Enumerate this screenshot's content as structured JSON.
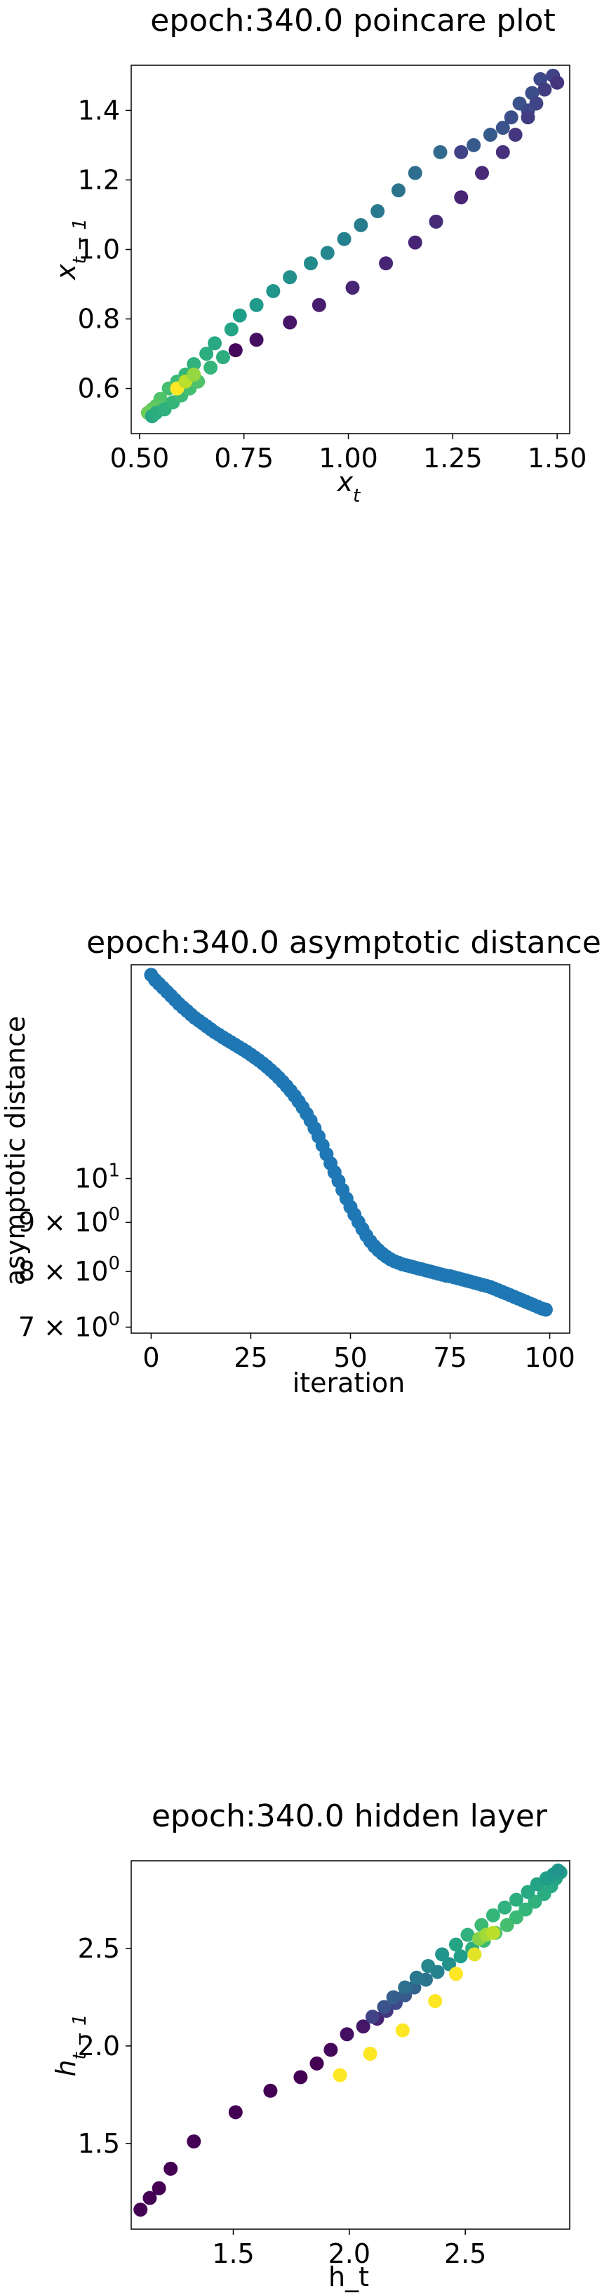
{
  "chart_data": [
    {
      "type": "scatter",
      "title": "epoch:340.0 poincare plot",
      "xlabel": "x_t",
      "ylabel": "x_{t-1}",
      "xlim": [
        0.48,
        1.53
      ],
      "ylim": [
        0.47,
        1.53
      ],
      "xticks": [
        0.5,
        0.75,
        1.0,
        1.25,
        1.5
      ],
      "xtick_labels": [
        "0.50",
        "0.75",
        "1.00",
        "1.25",
        "1.50"
      ],
      "yticks": [
        0.6,
        0.8,
        1.0,
        1.2,
        1.4
      ],
      "ytick_labels": [
        "0.6",
        "0.8",
        "1.0",
        "1.2",
        "1.4"
      ],
      "colormap": "viridis",
      "grid": false,
      "points": [
        {
          "x": 1.49,
          "y": 1.5,
          "c": 0.2
        },
        {
          "x": 1.5,
          "y": 1.48,
          "c": 0.15
        },
        {
          "x": 1.46,
          "y": 1.49,
          "c": 0.22
        },
        {
          "x": 1.47,
          "y": 1.46,
          "c": 0.18
        },
        {
          "x": 1.44,
          "y": 1.45,
          "c": 0.24
        },
        {
          "x": 1.45,
          "y": 1.42,
          "c": 0.2
        },
        {
          "x": 1.41,
          "y": 1.42,
          "c": 0.26
        },
        {
          "x": 1.43,
          "y": 1.4,
          "c": 0.22
        },
        {
          "x": 1.39,
          "y": 1.38,
          "c": 0.24
        },
        {
          "x": 1.37,
          "y": 1.35,
          "c": 0.26
        },
        {
          "x": 1.34,
          "y": 1.33,
          "c": 0.28
        },
        {
          "x": 1.3,
          "y": 1.3,
          "c": 0.28
        },
        {
          "x": 1.27,
          "y": 1.28,
          "c": 0.2
        },
        {
          "x": 1.22,
          "y": 1.28,
          "c": 0.34
        },
        {
          "x": 1.16,
          "y": 1.22,
          "c": 0.36
        },
        {
          "x": 1.12,
          "y": 1.17,
          "c": 0.38
        },
        {
          "x": 1.07,
          "y": 1.11,
          "c": 0.4
        },
        {
          "x": 1.03,
          "y": 1.07,
          "c": 0.42
        },
        {
          "x": 0.99,
          "y": 1.03,
          "c": 0.44
        },
        {
          "x": 0.95,
          "y": 0.99,
          "c": 0.46
        },
        {
          "x": 0.91,
          "y": 0.96,
          "c": 0.48
        },
        {
          "x": 0.86,
          "y": 0.92,
          "c": 0.5
        },
        {
          "x": 0.82,
          "y": 0.88,
          "c": 0.52
        },
        {
          "x": 0.78,
          "y": 0.84,
          "c": 0.54
        },
        {
          "x": 0.74,
          "y": 0.81,
          "c": 0.56
        },
        {
          "x": 0.72,
          "y": 0.77,
          "c": 0.58
        },
        {
          "x": 0.68,
          "y": 0.73,
          "c": 0.6
        },
        {
          "x": 0.66,
          "y": 0.7,
          "c": 0.62
        },
        {
          "x": 0.63,
          "y": 0.67,
          "c": 0.64
        },
        {
          "x": 0.61,
          "y": 0.64,
          "c": 0.66
        },
        {
          "x": 0.59,
          "y": 0.62,
          "c": 0.68
        },
        {
          "x": 0.57,
          "y": 0.6,
          "c": 0.7
        },
        {
          "x": 0.55,
          "y": 0.57,
          "c": 0.72
        },
        {
          "x": 0.54,
          "y": 0.55,
          "c": 0.74
        },
        {
          "x": 0.53,
          "y": 0.54,
          "c": 0.76
        },
        {
          "x": 0.52,
          "y": 0.53,
          "c": 0.78
        },
        {
          "x": 0.53,
          "y": 0.52,
          "c": 0.6
        },
        {
          "x": 0.54,
          "y": 0.53,
          "c": 0.62
        },
        {
          "x": 0.56,
          "y": 0.54,
          "c": 0.64
        },
        {
          "x": 0.58,
          "y": 0.56,
          "c": 0.66
        },
        {
          "x": 0.6,
          "y": 0.58,
          "c": 0.68
        },
        {
          "x": 0.62,
          "y": 0.6,
          "c": 0.7
        },
        {
          "x": 0.64,
          "y": 0.62,
          "c": 0.72
        },
        {
          "x": 0.59,
          "y": 0.6,
          "c": 1.0
        },
        {
          "x": 0.61,
          "y": 0.62,
          "c": 0.9
        },
        {
          "x": 0.63,
          "y": 0.64,
          "c": 0.84
        },
        {
          "x": 0.67,
          "y": 0.66,
          "c": 0.66
        },
        {
          "x": 0.7,
          "y": 0.69,
          "c": 0.62
        },
        {
          "x": 0.73,
          "y": 0.71,
          "c": 0.02
        },
        {
          "x": 0.78,
          "y": 0.74,
          "c": 0.04
        },
        {
          "x": 0.86,
          "y": 0.79,
          "c": 0.06
        },
        {
          "x": 0.93,
          "y": 0.84,
          "c": 0.08
        },
        {
          "x": 1.01,
          "y": 0.89,
          "c": 0.1
        },
        {
          "x": 1.09,
          "y": 0.96,
          "c": 0.1
        },
        {
          "x": 1.16,
          "y": 1.02,
          "c": 0.1
        },
        {
          "x": 1.21,
          "y": 1.08,
          "c": 0.12
        },
        {
          "x": 1.27,
          "y": 1.15,
          "c": 0.1
        },
        {
          "x": 1.32,
          "y": 1.22,
          "c": 0.12
        },
        {
          "x": 1.37,
          "y": 1.28,
          "c": 0.14
        },
        {
          "x": 1.4,
          "y": 1.33,
          "c": 0.16
        },
        {
          "x": 1.43,
          "y": 1.38,
          "c": 0.18
        }
      ]
    },
    {
      "type": "scatter",
      "title": "epoch:340.0 asymptotic distance",
      "xlabel": "iteration",
      "ylabel": "asymptotic distance",
      "xlim": [
        -5,
        105
      ],
      "ylim": [
        6.9,
        16.7
      ],
      "yscale": "log",
      "xticks": [
        0,
        25,
        50,
        75,
        100
      ],
      "xtick_labels": [
        "0",
        "25",
        "50",
        "75",
        "100"
      ],
      "yticks": [
        7,
        8,
        9,
        10
      ],
      "ytick_labels": [
        {
          "base": "7 × 10",
          "exp": "0"
        },
        {
          "base": "8 × 10",
          "exp": "0"
        },
        {
          "base": "9 × 10",
          "exp": "0"
        },
        {
          "base": "10",
          "exp": "1"
        }
      ],
      "color": "#1f77b4",
      "grid": false,
      "x": [
        0,
        1,
        2,
        3,
        4,
        5,
        6,
        7,
        8,
        9,
        10,
        11,
        12,
        13,
        14,
        15,
        16,
        17,
        18,
        19,
        20,
        21,
        22,
        23,
        24,
        25,
        26,
        27,
        28,
        29,
        30,
        31,
        32,
        33,
        34,
        35,
        36,
        37,
        38,
        39,
        40,
        41,
        42,
        43,
        44,
        45,
        46,
        47,
        48,
        49,
        50,
        51,
        52,
        53,
        54,
        55,
        56,
        57,
        58,
        59,
        60,
        61,
        62,
        63,
        64,
        65,
        66,
        67,
        68,
        69,
        70,
        71,
        72,
        73,
        74,
        75,
        76,
        77,
        78,
        79,
        80,
        81,
        82,
        83,
        84,
        85,
        86,
        87,
        88,
        89,
        90,
        91,
        92,
        93,
        94,
        95,
        96,
        97,
        98,
        99
      ],
      "y": [
        16.3,
        16.1,
        15.95,
        15.8,
        15.65,
        15.5,
        15.35,
        15.2,
        15.07,
        14.95,
        14.82,
        14.7,
        14.6,
        14.5,
        14.4,
        14.3,
        14.2,
        14.12,
        14.03,
        13.95,
        13.87,
        13.79,
        13.71,
        13.63,
        13.55,
        13.46,
        13.37,
        13.28,
        13.18,
        13.08,
        12.97,
        12.86,
        12.74,
        12.61,
        12.48,
        12.34,
        12.19,
        12.03,
        11.86,
        11.68,
        11.49,
        11.28,
        11.06,
        10.83,
        10.6,
        10.37,
        10.15,
        9.94,
        9.73,
        9.53,
        9.34,
        9.17,
        9.01,
        8.86,
        8.72,
        8.6,
        8.5,
        8.42,
        8.35,
        8.29,
        8.24,
        8.2,
        8.17,
        8.14,
        8.12,
        8.1,
        8.08,
        8.06,
        8.04,
        8.02,
        8.0,
        7.98,
        7.96,
        7.94,
        7.92,
        7.91,
        7.89,
        7.87,
        7.85,
        7.83,
        7.81,
        7.79,
        7.77,
        7.75,
        7.73,
        7.71,
        7.68,
        7.65,
        7.62,
        7.59,
        7.56,
        7.53,
        7.5,
        7.47,
        7.44,
        7.41,
        7.38,
        7.35,
        7.32,
        7.3
      ]
    },
    {
      "type": "scatter",
      "title": "epoch:340.0 hidden layer",
      "xlabel": "h_t",
      "ylabel": "h_{t-1}",
      "xlim": [
        1.06,
        2.95
      ],
      "ylim": [
        1.06,
        2.95
      ],
      "xticks": [
        1.5,
        2.0,
        2.5
      ],
      "xtick_labels": [
        "1.5",
        "2.0",
        "2.5"
      ],
      "yticks": [
        1.5,
        2.0,
        2.5
      ],
      "ytick_labels": [
        "1.5",
        "2.0",
        "2.5"
      ],
      "colormap": "viridis",
      "grid": false,
      "points": [
        {
          "x": 1.1,
          "y": 1.16,
          "c": 0.0
        },
        {
          "x": 1.14,
          "y": 1.22,
          "c": 0.0
        },
        {
          "x": 1.18,
          "y": 1.27,
          "c": 0.0
        },
        {
          "x": 1.23,
          "y": 1.37,
          "c": 0.0
        },
        {
          "x": 1.33,
          "y": 1.51,
          "c": 0.0
        },
        {
          "x": 1.51,
          "y": 1.66,
          "c": 0.0
        },
        {
          "x": 1.66,
          "y": 1.77,
          "c": 0.0
        },
        {
          "x": 1.79,
          "y": 1.84,
          "c": 0.0
        },
        {
          "x": 1.86,
          "y": 1.91,
          "c": 0.0
        },
        {
          "x": 1.92,
          "y": 1.98,
          "c": 0.02
        },
        {
          "x": 1.99,
          "y": 2.06,
          "c": 0.04
        },
        {
          "x": 2.06,
          "y": 2.1,
          "c": 0.06
        },
        {
          "x": 2.12,
          "y": 2.14,
          "c": 0.1
        },
        {
          "x": 2.16,
          "y": 2.18,
          "c": 0.16
        },
        {
          "x": 2.2,
          "y": 2.22,
          "c": 0.22
        },
        {
          "x": 2.24,
          "y": 2.26,
          "c": 0.28
        },
        {
          "x": 2.28,
          "y": 2.3,
          "c": 0.32
        },
        {
          "x": 2.33,
          "y": 2.34,
          "c": 0.38
        },
        {
          "x": 2.38,
          "y": 2.38,
          "c": 0.44
        },
        {
          "x": 2.43,
          "y": 2.42,
          "c": 0.5
        },
        {
          "x": 2.48,
          "y": 2.46,
          "c": 0.56
        },
        {
          "x": 2.53,
          "y": 2.5,
          "c": 0.62
        },
        {
          "x": 2.58,
          "y": 2.54,
          "c": 0.68
        },
        {
          "x": 2.63,
          "y": 2.58,
          "c": 0.72
        },
        {
          "x": 2.68,
          "y": 2.62,
          "c": 0.7
        },
        {
          "x": 2.72,
          "y": 2.66,
          "c": 0.68
        },
        {
          "x": 2.76,
          "y": 2.7,
          "c": 0.66
        },
        {
          "x": 2.8,
          "y": 2.74,
          "c": 0.64
        },
        {
          "x": 2.84,
          "y": 2.78,
          "c": 0.62
        },
        {
          "x": 2.87,
          "y": 2.82,
          "c": 0.6
        },
        {
          "x": 2.89,
          "y": 2.86,
          "c": 0.58
        },
        {
          "x": 2.91,
          "y": 2.89,
          "c": 0.56
        },
        {
          "x": 2.1,
          "y": 2.15,
          "c": 0.2
        },
        {
          "x": 2.15,
          "y": 2.2,
          "c": 0.26
        },
        {
          "x": 2.19,
          "y": 2.25,
          "c": 0.3
        },
        {
          "x": 2.24,
          "y": 2.3,
          "c": 0.36
        },
        {
          "x": 2.29,
          "y": 2.35,
          "c": 0.4
        },
        {
          "x": 2.34,
          "y": 2.41,
          "c": 0.46
        },
        {
          "x": 2.4,
          "y": 2.47,
          "c": 0.52
        },
        {
          "x": 2.46,
          "y": 2.52,
          "c": 0.58
        },
        {
          "x": 2.51,
          "y": 2.57,
          "c": 0.64
        },
        {
          "x": 2.57,
          "y": 2.62,
          "c": 0.68
        },
        {
          "x": 2.62,
          "y": 2.67,
          "c": 0.66
        },
        {
          "x": 2.67,
          "y": 2.71,
          "c": 0.64
        },
        {
          "x": 2.72,
          "y": 2.75,
          "c": 0.62
        },
        {
          "x": 2.77,
          "y": 2.79,
          "c": 0.6
        },
        {
          "x": 2.81,
          "y": 2.83,
          "c": 0.58
        },
        {
          "x": 2.85,
          "y": 2.86,
          "c": 0.56
        },
        {
          "x": 2.88,
          "y": 2.88,
          "c": 0.54
        },
        {
          "x": 2.9,
          "y": 2.9,
          "c": 0.52
        },
        {
          "x": 2.56,
          "y": 2.55,
          "c": 0.82
        },
        {
          "x": 2.59,
          "y": 2.57,
          "c": 0.86
        },
        {
          "x": 2.62,
          "y": 2.58,
          "c": 0.9
        },
        {
          "x": 2.54,
          "y": 2.47,
          "c": 0.96
        },
        {
          "x": 2.46,
          "y": 2.37,
          "c": 1.0
        },
        {
          "x": 2.37,
          "y": 2.23,
          "c": 1.0
        },
        {
          "x": 2.23,
          "y": 2.08,
          "c": 1.0
        },
        {
          "x": 2.09,
          "y": 1.96,
          "c": 1.0
        },
        {
          "x": 1.96,
          "y": 1.85,
          "c": 1.0
        }
      ]
    }
  ]
}
